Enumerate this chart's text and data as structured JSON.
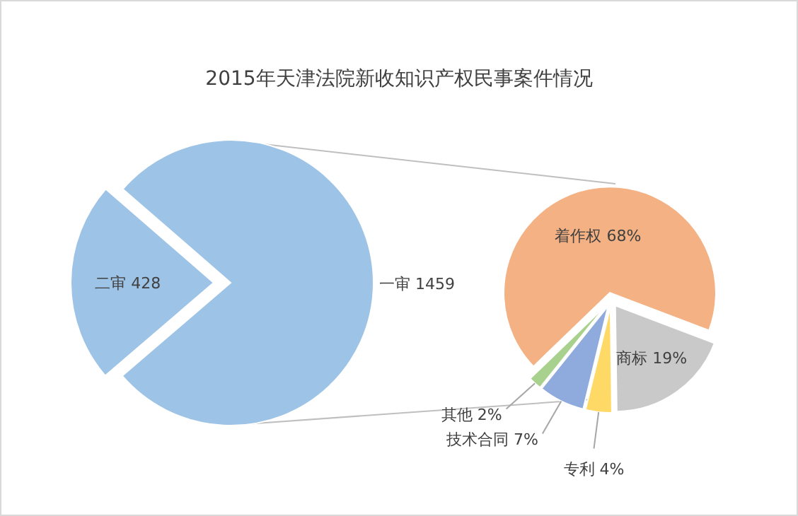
{
  "chart_data": [
    {
      "type": "pie",
      "title": "2015年天津法院新收知识产权民事案件情况",
      "categories": [
        "一审",
        "二审"
      ],
      "values": [
        1459,
        428
      ],
      "value_labels": [
        "1459",
        "428"
      ],
      "colors": [
        "#9dc3e6",
        "#9dc3e6"
      ]
    },
    {
      "type": "pie",
      "categories": [
        "着作权",
        "商标",
        "专利",
        "技术合同",
        "其他"
      ],
      "values": [
        68,
        19,
        4,
        7,
        2
      ],
      "value_labels": [
        "68%",
        "19%",
        "4%",
        "7%",
        "2%"
      ],
      "colors": [
        "#f4b183",
        "#c9c9c9",
        "#ffd966",
        "#8faadc",
        "#a9d18e"
      ]
    }
  ]
}
